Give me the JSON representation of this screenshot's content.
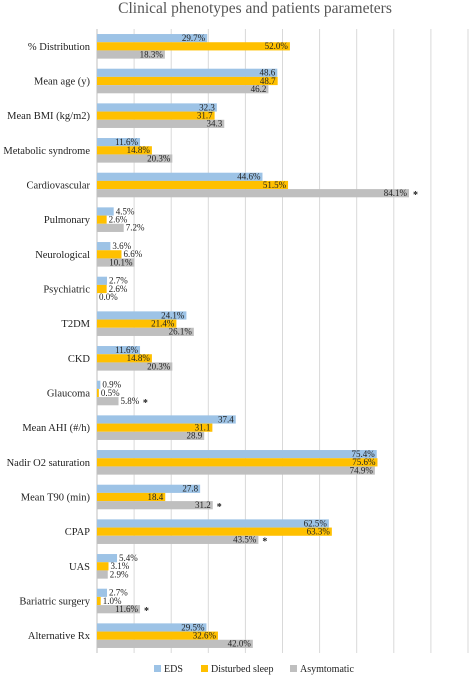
{
  "chart_data": {
    "type": "bar",
    "orientation": "horizontal",
    "title": "Clinical phenotypes and patients parameters",
    "xlim": [
      0,
      100
    ],
    "grid": true,
    "legend_position": "bottom",
    "categories": [
      "% Distribution",
      "Mean age (y)",
      "Mean BMI (kg/m2)",
      "Metabolic syndrome",
      "Cardiovascular",
      "Pulmonary",
      "Neurological",
      "Psychiatric",
      "T2DM",
      "CKD",
      "Glaucoma",
      "Mean AHI (#/h)",
      "Nadir O2 saturation",
      "Mean T90 (min)",
      "CPAP",
      "UAS",
      "Bariatric surgery",
      "Alternative Rx"
    ],
    "series": [
      {
        "name": "EDS",
        "color": "#9dc3e6",
        "values": [
          29.7,
          48.6,
          32.3,
          11.6,
          44.6,
          4.5,
          3.6,
          2.7,
          24.1,
          11.6,
          0.9,
          37.4,
          75.4,
          27.8,
          62.5,
          5.4,
          2.7,
          29.5
        ],
        "labels": [
          "29.7%",
          "48.6",
          "32.3",
          "11.6%",
          "44.6%",
          "4.5%",
          "3.6%",
          "2.7%",
          "24.1%",
          "11.6%",
          "0.9%",
          "37.4",
          "75.4%",
          "27.8",
          "62.5%",
          "5.4%",
          "2.7%",
          "29.5%"
        ]
      },
      {
        "name": "Disturbed sleep",
        "color": "#ffc000",
        "values": [
          52.0,
          48.7,
          31.7,
          14.8,
          51.5,
          2.6,
          6.6,
          2.6,
          21.4,
          14.8,
          0.5,
          31.1,
          75.6,
          18.4,
          63.3,
          3.1,
          1.0,
          32.6
        ],
        "labels": [
          "52.0%",
          "48.7",
          "31.7",
          "14.8%",
          "51.5%",
          "2.6%",
          "6.6%",
          "2.6%",
          "21.4%",
          "14.8%",
          "0.5%",
          "31.1",
          "75.6%",
          "18.4",
          "63.3%",
          "3.1%",
          "1.0%",
          "32.6%"
        ]
      },
      {
        "name": "Asymtomatic",
        "color": "#bfbfbf",
        "values": [
          18.3,
          46.2,
          34.3,
          20.3,
          84.1,
          7.2,
          10.1,
          0.0,
          26.1,
          20.3,
          5.8,
          28.9,
          74.9,
          31.2,
          43.5,
          2.9,
          11.6,
          42.0
        ],
        "labels": [
          "18.3%",
          "46.2",
          "34.3",
          "20.3%",
          "84.1%",
          "7.2%",
          "10.1%",
          "0.0%",
          "26.1%",
          "20.3%",
          "5.8%",
          "28.9",
          "74.9%",
          "31.2",
          "43.5%",
          "2.9%",
          "11.6%",
          "42.0%"
        ]
      }
    ],
    "annotations": [
      {
        "category": "Cardiovascular",
        "series": "Asymtomatic",
        "text": "*"
      },
      {
        "category": "Glaucoma",
        "series": "Asymtomatic",
        "text": "*"
      },
      {
        "category": "Mean T90 (min)",
        "series": "Asymtomatic",
        "text": "*"
      },
      {
        "category": "CPAP",
        "series": "Asymtomatic",
        "text": "*"
      },
      {
        "category": "Bariatric surgery",
        "series": "Asymtomatic",
        "text": "*"
      }
    ]
  }
}
